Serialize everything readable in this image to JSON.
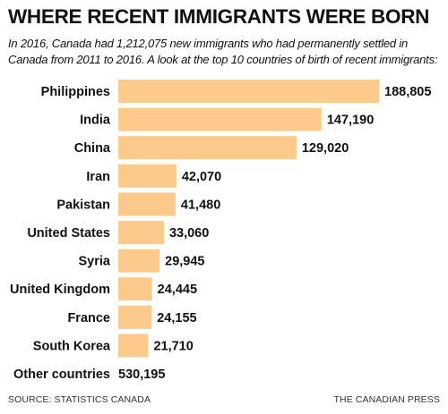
{
  "title": "WHERE RECENT IMMIGRANTS WERE BORN",
  "subtitle": "In 2016, Canada had 1,212,075 new immigrants who had permanently settled in Canada from 2011 to 2016. A look at the top 10 countries of birth of recent immigrants:",
  "chart_data": {
    "type": "bar",
    "orientation": "horizontal",
    "title": "WHERE RECENT IMMIGRANTS WERE BORN",
    "categories": [
      "Philippines",
      "India",
      "China",
      "Iran",
      "Pakistan",
      "United States",
      "Syria",
      "United Kingdom",
      "France",
      "South Korea"
    ],
    "values": [
      188805,
      147190,
      129020,
      42070,
      41480,
      33060,
      29945,
      24445,
      24155,
      21710
    ],
    "value_labels": [
      "188,805",
      "147,190",
      "129,020",
      "42,070",
      "41,480",
      "33,060",
      "29,945",
      "24,445",
      "24,155",
      "21,710"
    ],
    "extra_row": {
      "label": "Other countries",
      "value": 530195,
      "value_label": "530,195"
    },
    "bar_color": "#fccb8c",
    "grid": false,
    "legend": "none"
  },
  "footer": {
    "source": "SOURCE: STATISTICS CANADA",
    "credit": "THE CANADIAN PRESS"
  }
}
